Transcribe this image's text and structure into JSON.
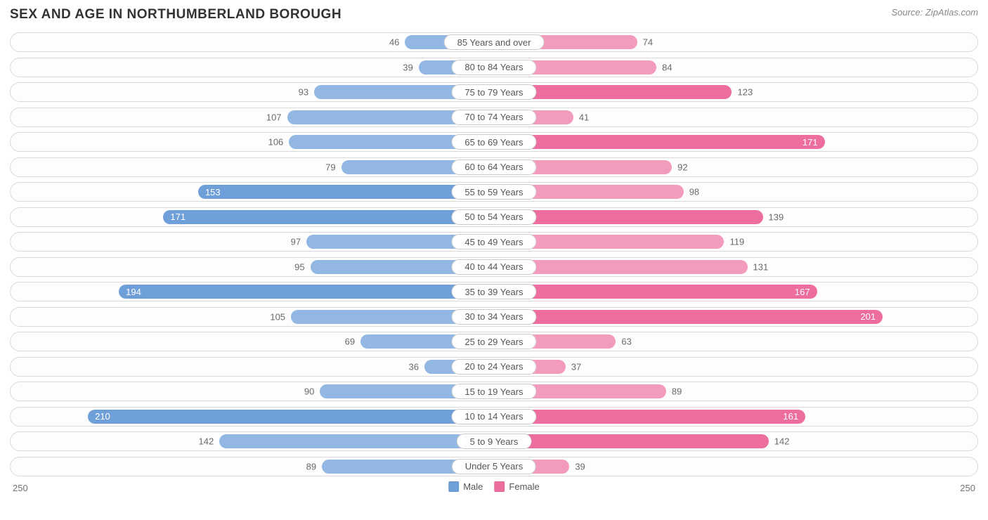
{
  "title": "SEX AND AGE IN NORTHUMBERLAND BOROUGH",
  "source": "Source: ZipAtlas.com",
  "axis_max": 250,
  "axis_label_left": "250",
  "axis_label_right": "250",
  "colors": {
    "male_bar": "#6f9fd8",
    "female_bar": "#ed6e9e",
    "male_bar_alt": "#91b7e2",
    "female_bar_alt": "#f39bbd",
    "row_border": "#d9d9d9",
    "text_title": "#333333",
    "text_value": "#6a6a6a",
    "text_category": "#555555",
    "background": "#ffffff"
  },
  "legend": {
    "male": "Male",
    "female": "Female"
  },
  "value_label_threshold": 150,
  "rows": [
    {
      "category": "85 Years and over",
      "male": 46,
      "female": 74,
      "male_shade": "alt",
      "female_shade": "alt"
    },
    {
      "category": "80 to 84 Years",
      "male": 39,
      "female": 84,
      "male_shade": "alt",
      "female_shade": "alt"
    },
    {
      "category": "75 to 79 Years",
      "male": 93,
      "female": 123,
      "male_shade": "alt",
      "female_shade": "main"
    },
    {
      "category": "70 to 74 Years",
      "male": 107,
      "female": 41,
      "male_shade": "alt",
      "female_shade": "alt"
    },
    {
      "category": "65 to 69 Years",
      "male": 106,
      "female": 171,
      "male_shade": "alt",
      "female_shade": "main"
    },
    {
      "category": "60 to 64 Years",
      "male": 79,
      "female": 92,
      "male_shade": "alt",
      "female_shade": "alt"
    },
    {
      "category": "55 to 59 Years",
      "male": 153,
      "female": 98,
      "male_shade": "main",
      "female_shade": "alt"
    },
    {
      "category": "50 to 54 Years",
      "male": 171,
      "female": 139,
      "male_shade": "main",
      "female_shade": "main"
    },
    {
      "category": "45 to 49 Years",
      "male": 97,
      "female": 119,
      "male_shade": "alt",
      "female_shade": "alt"
    },
    {
      "category": "40 to 44 Years",
      "male": 95,
      "female": 131,
      "male_shade": "alt",
      "female_shade": "alt"
    },
    {
      "category": "35 to 39 Years",
      "male": 194,
      "female": 167,
      "male_shade": "main",
      "female_shade": "main"
    },
    {
      "category": "30 to 34 Years",
      "male": 105,
      "female": 201,
      "male_shade": "alt",
      "female_shade": "main"
    },
    {
      "category": "25 to 29 Years",
      "male": 69,
      "female": 63,
      "male_shade": "alt",
      "female_shade": "alt"
    },
    {
      "category": "20 to 24 Years",
      "male": 36,
      "female": 37,
      "male_shade": "alt",
      "female_shade": "alt"
    },
    {
      "category": "15 to 19 Years",
      "male": 90,
      "female": 89,
      "male_shade": "alt",
      "female_shade": "alt"
    },
    {
      "category": "10 to 14 Years",
      "male": 210,
      "female": 161,
      "male_shade": "main",
      "female_shade": "main"
    },
    {
      "category": "5 to 9 Years",
      "male": 142,
      "female": 142,
      "male_shade": "alt",
      "female_shade": "main"
    },
    {
      "category": "Under 5 Years",
      "male": 89,
      "female": 39,
      "male_shade": "alt",
      "female_shade": "alt"
    }
  ]
}
